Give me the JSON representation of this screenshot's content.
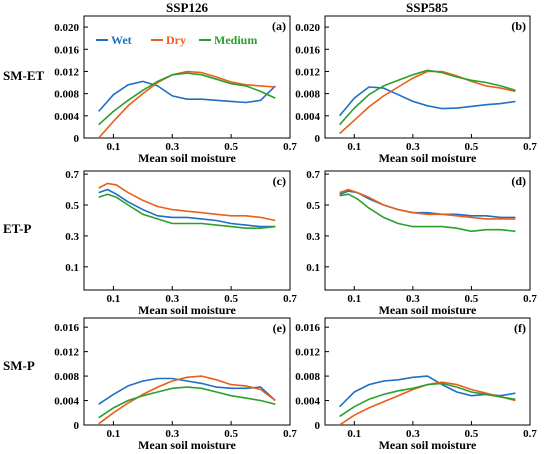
{
  "figure": {
    "columns": [
      "SSP126",
      "SSP585"
    ],
    "rows": [
      "SM-ET",
      "ET-P",
      "SM-P"
    ]
  },
  "legend": {
    "placement": "top",
    "entries": [
      {
        "name": "Wet",
        "color": "#1f6fc4"
      },
      {
        "name": "Dry",
        "color": "#e8601a"
      },
      {
        "name": "Medium",
        "color": "#2ca02c"
      }
    ]
  },
  "chart_data": [
    {
      "type": "line",
      "panel_label": "(a)",
      "xlabel": "Mean soil moisture",
      "ylabel": "SM-ET",
      "xlim": [
        0,
        0.7
      ],
      "ylim": [
        0,
        0.022
      ],
      "xticks": [
        "0.1",
        "0.3",
        "0.5",
        "0.7"
      ],
      "yticks": [
        "0",
        "0.004",
        "0.008",
        "0.012",
        "0.016",
        "0.020"
      ],
      "x": [
        0.05,
        0.1,
        0.15,
        0.2,
        0.25,
        0.3,
        0.35,
        0.4,
        0.45,
        0.5,
        0.55,
        0.6,
        0.65
      ],
      "series": [
        {
          "name": "Wet",
          "values": [
            0.0048,
            0.0078,
            0.0096,
            0.0102,
            0.0094,
            0.0076,
            0.007,
            0.007,
            0.0068,
            0.0066,
            0.0064,
            0.0068,
            0.0094
          ]
        },
        {
          "name": "Dry",
          "values": [
            0.0,
            0.003,
            0.0058,
            0.008,
            0.01,
            0.0114,
            0.012,
            0.0118,
            0.011,
            0.0101,
            0.0096,
            0.0094,
            0.0092
          ]
        },
        {
          "name": "Medium",
          "values": [
            0.0024,
            0.0048,
            0.0068,
            0.0086,
            0.0102,
            0.0114,
            0.0117,
            0.0114,
            0.0106,
            0.0098,
            0.0094,
            0.0084,
            0.0072
          ]
        }
      ]
    },
    {
      "type": "line",
      "panel_label": "(b)",
      "xlabel": "Mean soil moisture",
      "xlim": [
        0,
        0.7
      ],
      "ylim": [
        0,
        0.022
      ],
      "xticks": [
        "0.1",
        "0.3",
        "0.5",
        "0.7"
      ],
      "yticks": [
        "0",
        "0.004",
        "0.008",
        "0.012",
        "0.016",
        "0.020"
      ],
      "x": [
        0.05,
        0.1,
        0.15,
        0.2,
        0.25,
        0.3,
        0.35,
        0.4,
        0.45,
        0.5,
        0.55,
        0.6,
        0.65
      ],
      "series": [
        {
          "name": "Wet",
          "values": [
            0.004,
            0.0072,
            0.0092,
            0.009,
            0.0078,
            0.0066,
            0.0058,
            0.0053,
            0.0054,
            0.0057,
            0.006,
            0.0062,
            0.0066
          ]
        },
        {
          "name": "Dry",
          "values": [
            0.0008,
            0.0032,
            0.0056,
            0.0076,
            0.0092,
            0.0108,
            0.012,
            0.012,
            0.0112,
            0.0102,
            0.0094,
            0.009,
            0.0084
          ]
        },
        {
          "name": "Medium",
          "values": [
            0.0024,
            0.0054,
            0.0078,
            0.0094,
            0.0104,
            0.0114,
            0.0122,
            0.0118,
            0.011,
            0.0104,
            0.01,
            0.0094,
            0.0086
          ]
        }
      ]
    },
    {
      "type": "line",
      "panel_label": "(c)",
      "xlabel": "Mean soil moisture",
      "ylabel": "ET-P",
      "xlim": [
        0,
        0.7
      ],
      "ylim": [
        -0.05,
        0.72
      ],
      "xticks": [
        "0.1",
        "0.3",
        "0.5",
        "0.7"
      ],
      "yticks": [
        "0.1",
        "0.3",
        "0.5",
        "0.7"
      ],
      "x": [
        0.05,
        0.08,
        0.11,
        0.15,
        0.2,
        0.25,
        0.3,
        0.35,
        0.4,
        0.45,
        0.5,
        0.55,
        0.6,
        0.65
      ],
      "series": [
        {
          "name": "Wet",
          "values": [
            0.58,
            0.6,
            0.57,
            0.52,
            0.47,
            0.43,
            0.42,
            0.42,
            0.41,
            0.4,
            0.38,
            0.37,
            0.36,
            0.36
          ]
        },
        {
          "name": "Dry",
          "values": [
            0.61,
            0.64,
            0.63,
            0.58,
            0.53,
            0.49,
            0.47,
            0.46,
            0.45,
            0.44,
            0.43,
            0.43,
            0.42,
            0.4
          ]
        },
        {
          "name": "Medium",
          "values": [
            0.55,
            0.57,
            0.55,
            0.5,
            0.44,
            0.41,
            0.38,
            0.38,
            0.38,
            0.37,
            0.36,
            0.35,
            0.35,
            0.36
          ]
        }
      ]
    },
    {
      "type": "line",
      "panel_label": "(d)",
      "xlabel": "Mean soil moisture",
      "xlim": [
        0,
        0.7
      ],
      "ylim": [
        -0.05,
        0.72
      ],
      "xticks": [
        "0.1",
        "0.3",
        "0.5",
        "0.7"
      ],
      "yticks": [
        "0.1",
        "0.3",
        "0.5",
        "0.7"
      ],
      "x": [
        0.05,
        0.08,
        0.11,
        0.15,
        0.2,
        0.25,
        0.3,
        0.35,
        0.4,
        0.45,
        0.5,
        0.55,
        0.6,
        0.65
      ],
      "series": [
        {
          "name": "Wet",
          "values": [
            0.57,
            0.59,
            0.58,
            0.54,
            0.5,
            0.47,
            0.45,
            0.45,
            0.44,
            0.44,
            0.43,
            0.43,
            0.42,
            0.42
          ]
        },
        {
          "name": "Dry",
          "values": [
            0.58,
            0.6,
            0.58,
            0.55,
            0.5,
            0.47,
            0.45,
            0.44,
            0.44,
            0.43,
            0.42,
            0.41,
            0.41,
            0.41
          ]
        },
        {
          "name": "Medium",
          "values": [
            0.56,
            0.57,
            0.54,
            0.48,
            0.42,
            0.38,
            0.36,
            0.36,
            0.36,
            0.35,
            0.33,
            0.34,
            0.34,
            0.33
          ]
        }
      ]
    },
    {
      "type": "line",
      "panel_label": "(e)",
      "xlabel": "Mean soil moisture",
      "ylabel": "SM-P",
      "xlim": [
        0,
        0.7
      ],
      "ylim": [
        0,
        0.0175
      ],
      "xticks": [
        "0.1",
        "0.3",
        "0.5",
        "0.7"
      ],
      "yticks": [
        "0",
        "0.004",
        "0.008",
        "0.012",
        "0.016"
      ],
      "x": [
        0.05,
        0.1,
        0.15,
        0.2,
        0.25,
        0.3,
        0.35,
        0.4,
        0.45,
        0.5,
        0.55,
        0.6,
        0.65
      ],
      "series": [
        {
          "name": "Wet",
          "values": [
            0.0034,
            0.005,
            0.0064,
            0.0072,
            0.0076,
            0.0076,
            0.0072,
            0.0068,
            0.0062,
            0.006,
            0.006,
            0.0062,
            0.004
          ]
        },
        {
          "name": "Dry",
          "values": [
            0.0002,
            0.002,
            0.0036,
            0.005,
            0.0062,
            0.0072,
            0.0078,
            0.008,
            0.0074,
            0.0066,
            0.0064,
            0.0058,
            0.004
          ]
        },
        {
          "name": "Medium",
          "values": [
            0.0012,
            0.0028,
            0.004,
            0.0048,
            0.0054,
            0.006,
            0.0062,
            0.006,
            0.0054,
            0.0048,
            0.0044,
            0.004,
            0.0034
          ]
        }
      ]
    },
    {
      "type": "line",
      "panel_label": "(f)",
      "xlabel": "Mean soil moisture",
      "xlim": [
        0,
        0.7
      ],
      "ylim": [
        0,
        0.0175
      ],
      "xticks": [
        "0.1",
        "0.3",
        "0.5",
        "0.7"
      ],
      "yticks": [
        "0",
        "0.004",
        "0.008",
        "0.012",
        "0.016"
      ],
      "x": [
        0.05,
        0.1,
        0.15,
        0.2,
        0.25,
        0.3,
        0.35,
        0.4,
        0.45,
        0.5,
        0.55,
        0.6,
        0.65
      ],
      "series": [
        {
          "name": "Wet",
          "values": [
            0.003,
            0.0054,
            0.0066,
            0.0072,
            0.0074,
            0.0078,
            0.008,
            0.0066,
            0.0054,
            0.0048,
            0.005,
            0.0048,
            0.0052
          ]
        },
        {
          "name": "Dry",
          "values": [
            0.0,
            0.0016,
            0.0028,
            0.0038,
            0.0048,
            0.0058,
            0.0066,
            0.007,
            0.0066,
            0.0058,
            0.0052,
            0.0046,
            0.004
          ]
        },
        {
          "name": "Medium",
          "values": [
            0.0014,
            0.003,
            0.0042,
            0.005,
            0.0056,
            0.006,
            0.0066,
            0.0068,
            0.0062,
            0.0054,
            0.005,
            0.0046,
            0.0042
          ]
        }
      ]
    }
  ]
}
